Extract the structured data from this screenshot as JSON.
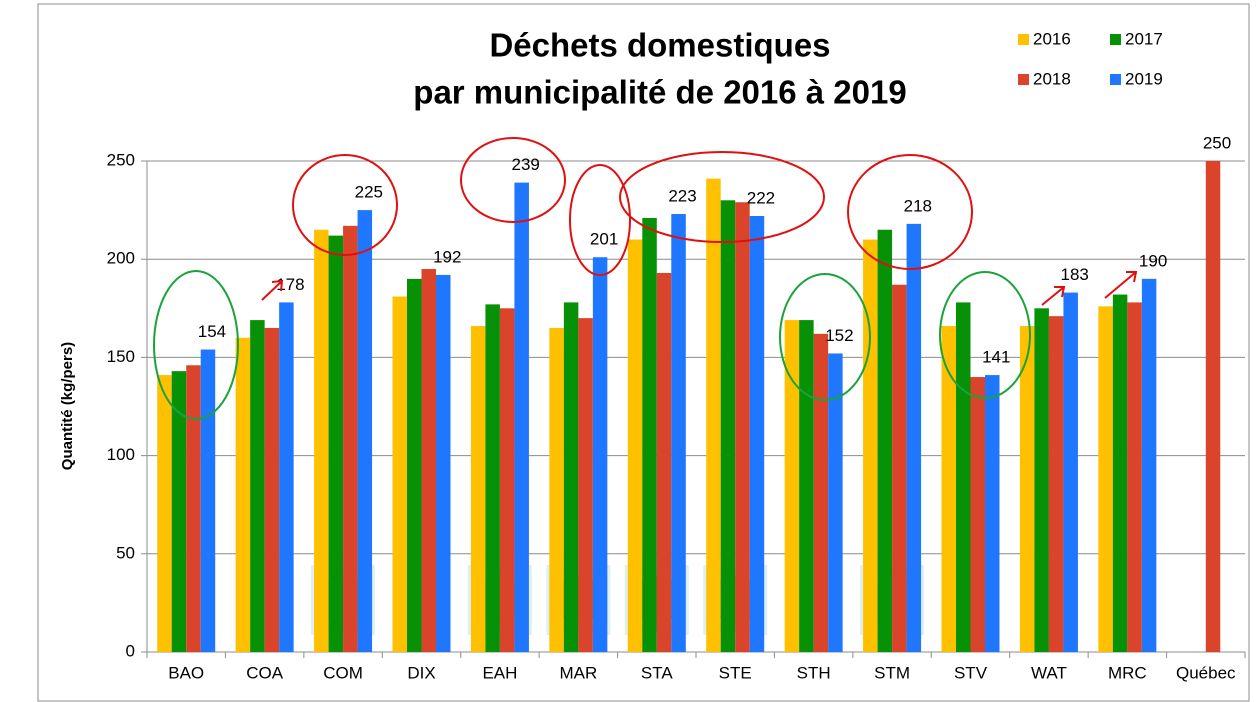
{
  "chart_data": {
    "type": "bar",
    "title": [
      "Déchets domestiques",
      "par municipalité de 2016 à 2019"
    ],
    "y_label": "Quantité  (kg/pers)",
    "categories": [
      "BAO",
      "COA",
      "COM",
      "DIX",
      "EAH",
      "MAR",
      "STA",
      "STE",
      "STH",
      "STM",
      "STV",
      "WAT",
      "MRC",
      "Québec"
    ],
    "series": [
      {
        "name": "2016",
        "color": "#ffc000",
        "values": [
          141,
          160,
          215,
          181,
          166,
          165,
          210,
          241,
          169,
          210,
          166,
          166,
          176,
          null
        ]
      },
      {
        "name": "2017",
        "color": "#079107",
        "values": [
          143,
          169,
          212,
          190,
          177,
          178,
          221,
          230,
          169,
          215,
          178,
          175,
          182,
          null
        ]
      },
      {
        "name": "2018",
        "color": "#d9442b",
        "values": [
          146,
          165,
          217,
          195,
          175,
          170,
          193,
          229,
          162,
          187,
          140,
          171,
          178,
          250
        ],
        "value_labels": [
          null,
          null,
          null,
          null,
          null,
          null,
          null,
          null,
          null,
          null,
          null,
          null,
          null,
          "250"
        ]
      },
      {
        "name": "2019",
        "color": "#1f77ff",
        "values": [
          154,
          178,
          225,
          192,
          239,
          201,
          223,
          222,
          152,
          218,
          141,
          183,
          190,
          null
        ],
        "value_labels": [
          "154",
          "178",
          "225",
          "192",
          "239",
          "201",
          "223",
          "222",
          "152",
          "218",
          "141",
          "183",
          "190",
          null
        ]
      }
    ],
    "ylim": [
      0,
      250
    ],
    "yticks": [
      0,
      50,
      100,
      150,
      200,
      250
    ],
    "grid": true,
    "legend": "top-right"
  }
}
